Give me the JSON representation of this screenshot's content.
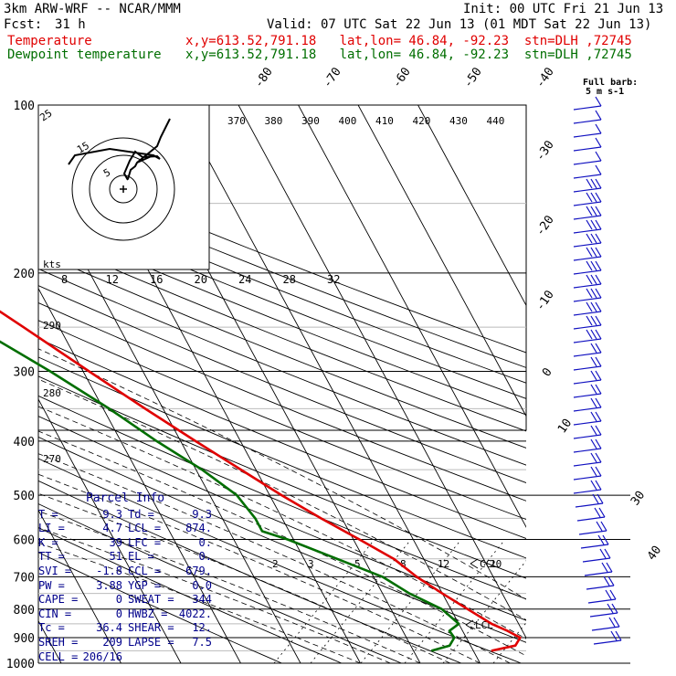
{
  "header": {
    "model": "3km ARW-WRF -- NCAR/MMM",
    "init": "Init: 00 UTC Fri 21 Jun 13",
    "fcst_label": "Fcst:",
    "fcst_value": "31 h",
    "valid": "Valid: 07 UTC Sat 22 Jun 13 (01 MDT Sat 22 Jun 13)",
    "temp_label": "Temperature",
    "temp_loc": "x,y=613.52,791.18   lat,lon= 46.84, -92.23  stn=DLH ,72745",
    "dew_label": "Dewpoint temperature",
    "dew_loc": "x,y=613.52,791.18   lat,lon= 46.84, -92.23  stn=DLH ,72745",
    "barb_legend": "Full barb:",
    "barb_units": "5 m s-1"
  },
  "parcel_info": {
    "title": "Parcel Info",
    "rows": [
      [
        [
          "T",
          "9.3"
        ],
        [
          "Td",
          "9.3"
        ]
      ],
      [
        [
          "LI",
          "4.7"
        ],
        [
          "LCL",
          "874."
        ]
      ],
      [
        [
          "K",
          "39"
        ],
        [
          "LFC",
          "0."
        ]
      ],
      [
        [
          "TT",
          "51"
        ],
        [
          "EL",
          "0."
        ]
      ],
      [
        [
          "SVI",
          "-1.8"
        ],
        [
          "CCL",
          "679."
        ]
      ],
      [
        [
          "PW",
          "3.88"
        ],
        [
          "YGP",
          "0.0"
        ]
      ],
      [
        [
          "CAPE",
          "0"
        ],
        [
          "SWEAT",
          "344"
        ]
      ],
      [
        [
          "CIN",
          "0"
        ],
        [
          "HWBZ",
          "4022."
        ]
      ],
      [
        [
          "Tc",
          "36.4"
        ],
        [
          "SHEAR",
          "12."
        ]
      ],
      [
        [
          "SREH",
          "209"
        ],
        [
          "LAPSE",
          "7.5"
        ]
      ],
      [
        [
          "CELL",
          "206/16"
        ]
      ]
    ]
  },
  "chart_data": {
    "type": "skew-t",
    "y_axis": "pressure (hPa)",
    "ylim": [
      1000,
      100
    ],
    "pressure_ticks": [
      100,
      200,
      300,
      400,
      500,
      600,
      700,
      800,
      900,
      1000
    ],
    "isotherms": [
      40,
      30,
      20,
      10,
      0,
      -10,
      -20,
      -30,
      -40,
      -50,
      -60,
      -70,
      -80
    ],
    "isotherm_labels": [
      "-80",
      "-70",
      "-60",
      "-50",
      "-40",
      "-30",
      "-20",
      "-10",
      "0",
      "10",
      "30",
      "40"
    ],
    "theta_labels": [
      "270",
      "280",
      "290"
    ],
    "theta_e_labels": [
      "370",
      "380",
      "390",
      "400",
      "410",
      "420",
      "430",
      "440"
    ],
    "mixing_ratio_labels": [
      "2",
      "3",
      "5",
      "8",
      "12",
      "20"
    ],
    "ccl_label": "CCL",
    "lcl_label": "LCL",
    "series": [
      {
        "name": "Temperature",
        "color": "#e00000",
        "points": [
          [
            950,
            13.0
          ],
          [
            930,
            17.5
          ],
          [
            900,
            19.0
          ],
          [
            875,
            17.5
          ],
          [
            850,
            15.5
          ],
          [
            800,
            12.8
          ],
          [
            750,
            10.0
          ],
          [
            700,
            7.2
          ],
          [
            650,
            5.0
          ],
          [
            600,
            1.0
          ],
          [
            550,
            -3.5
          ],
          [
            500,
            -8.0
          ],
          [
            450,
            -12.5
          ],
          [
            400,
            -17.5
          ],
          [
            350,
            -23.0
          ],
          [
            300,
            -29.0
          ],
          [
            250,
            -36.0
          ],
          [
            220,
            -41.0
          ],
          [
            200,
            -45.0
          ],
          [
            180,
            -50.0
          ],
          [
            160,
            -55.0
          ],
          [
            140,
            -60.0
          ],
          [
            130,
            -61.0
          ],
          [
            115,
            -59.0
          ],
          [
            100,
            -57.0
          ]
        ]
      },
      {
        "name": "Dewpoint temperature",
        "color": "#006e00",
        "points": [
          [
            950,
            3.0
          ],
          [
            930,
            6.5
          ],
          [
            900,
            8.0
          ],
          [
            875,
            7.8
          ],
          [
            850,
            10.0
          ],
          [
            800,
            8.5
          ],
          [
            750,
            4.5
          ],
          [
            700,
            1.5
          ],
          [
            650,
            -4.5
          ],
          [
            600,
            -11.0
          ],
          [
            580,
            -14.5
          ],
          [
            550,
            -14.5
          ],
          [
            500,
            -15.5
          ],
          [
            450,
            -19.0
          ],
          [
            400,
            -24.0
          ],
          [
            350,
            -29.0
          ],
          [
            300,
            -35.5
          ],
          [
            250,
            -44.0
          ],
          [
            200,
            -53.0
          ],
          [
            175,
            -60.0
          ],
          [
            150,
            -66.0
          ],
          [
            130,
            -71.0
          ],
          [
            110,
            -76.0
          ],
          [
            100,
            -79.0
          ]
        ]
      }
    ],
    "hodograph": {
      "speed_labels": [
        "kts",
        "5",
        "15",
        "25"
      ],
      "speed_units": "kts",
      "band_labels": [
        "8",
        "12",
        "16",
        "20",
        "24",
        "28",
        "32"
      ]
    },
    "wind_barbs_count": 40
  }
}
